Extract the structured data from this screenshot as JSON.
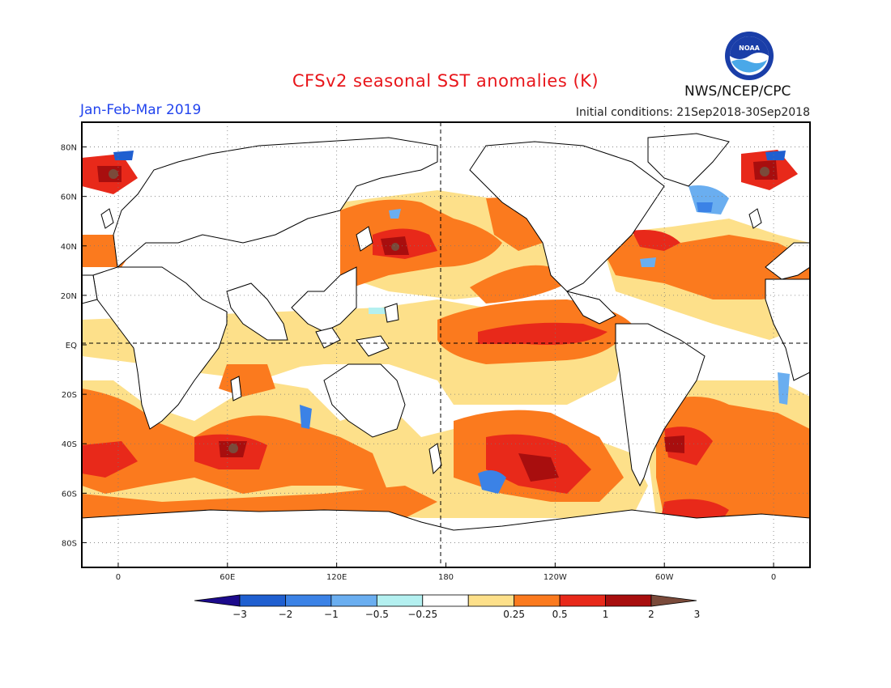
{
  "header": {
    "title": "CFSv2 seasonal SST anomalies (K)",
    "period": "Jan-Feb-Mar 2019",
    "initial_conditions": "Initial conditions: 21Sep2018-30Sep2018",
    "agency": "NWS/NCEP/CPC",
    "logo_text": "NOAA"
  },
  "map": {
    "lat_labels": [
      "80N",
      "60N",
      "40N",
      "20N",
      "EQ",
      "20S",
      "40S",
      "60S",
      "80S"
    ],
    "lat_values": [
      80,
      60,
      40,
      20,
      0,
      -20,
      -40,
      -60,
      -80
    ],
    "lon_labels": [
      "0",
      "60E",
      "120E",
      "180",
      "120W",
      "60W",
      "0"
    ],
    "lon_values": [
      0,
      60,
      120,
      180,
      240,
      300,
      360
    ]
  },
  "colorbar": {
    "labels": [
      "-3",
      "-2",
      "-1",
      "-0.5",
      "-0.25",
      "0.25",
      "0.5",
      "1",
      "2",
      "3"
    ],
    "colors": [
      "#1c0a8c",
      "#1f5fd0",
      "#3b82e6",
      "#6aaef0",
      "#b4f0f0",
      "#ffffff",
      "#fde08a",
      "#fb7a1e",
      "#e8291a",
      "#a80e0e",
      "#7a4a3a"
    ]
  }
}
